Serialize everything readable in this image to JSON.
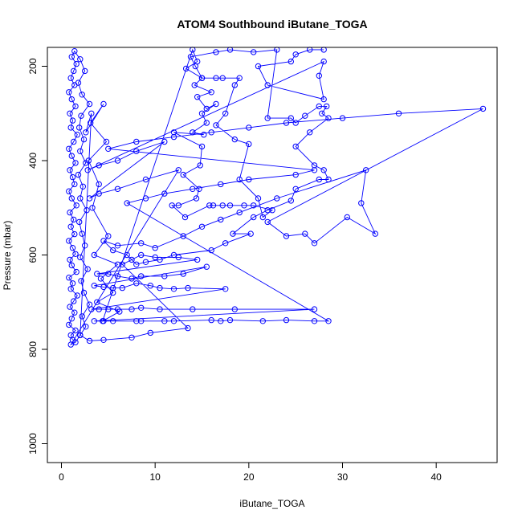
{
  "chart_data": {
    "type": "scatter",
    "title": "ATOM4 Southbound iButane_TOGA",
    "xlabel": "iButane_TOGA",
    "ylabel": "Pressure (mbar)",
    "xlim": [
      -1.5,
      46.5
    ],
    "ylim": [
      1040,
      160
    ],
    "y_reversed": true,
    "grid": false,
    "x_ticks": [
      0,
      10,
      20,
      30,
      40
    ],
    "y_ticks": [
      200,
      400,
      600,
      800,
      1000
    ],
    "series": [
      {
        "color": "#0000ff",
        "marker": "open-circle",
        "line": true,
        "points": [
          [
            1.2,
            780
          ],
          [
            1.0,
            770
          ],
          [
            1.5,
            760
          ],
          [
            0.8,
            748
          ],
          [
            1.1,
            735
          ],
          [
            1.4,
            722
          ],
          [
            0.9,
            710
          ],
          [
            1.3,
            698
          ],
          [
            1.7,
            686
          ],
          [
            1.0,
            672
          ],
          [
            1.2,
            660
          ],
          [
            0.8,
            648
          ],
          [
            1.6,
            636
          ],
          [
            1.1,
            622
          ],
          [
            0.9,
            610
          ],
          [
            1.5,
            598
          ],
          [
            1.2,
            585
          ],
          [
            0.8,
            570
          ],
          [
            1.4,
            556
          ],
          [
            1.0,
            540
          ],
          [
            1.3,
            525
          ],
          [
            0.9,
            510
          ],
          [
            1.6,
            495
          ],
          [
            1.1,
            480
          ],
          [
            0.8,
            465
          ],
          [
            1.4,
            450
          ],
          [
            1.2,
            435
          ],
          [
            0.9,
            420
          ],
          [
            1.5,
            405
          ],
          [
            1.1,
            390
          ],
          [
            0.8,
            375
          ],
          [
            1.3,
            360
          ],
          [
            1.7,
            345
          ],
          [
            1.0,
            330
          ],
          [
            1.2,
            315
          ],
          [
            0.9,
            300
          ],
          [
            1.5,
            285
          ],
          [
            1.1,
            270
          ],
          [
            0.8,
            255
          ],
          [
            1.4,
            240
          ],
          [
            1.0,
            225
          ],
          [
            1.3,
            210
          ],
          [
            1.6,
            195
          ],
          [
            1.1,
            180
          ],
          [
            1.4,
            168
          ],
          [
            2.0,
            185
          ],
          [
            2.5,
            210
          ],
          [
            1.8,
            235
          ],
          [
            2.2,
            260
          ],
          [
            3.0,
            280
          ],
          [
            2.1,
            305
          ],
          [
            1.9,
            330
          ],
          [
            2.4,
            355
          ],
          [
            2.0,
            380
          ],
          [
            2.6,
            405
          ],
          [
            1.8,
            430
          ],
          [
            2.3,
            455
          ],
          [
            2.0,
            480
          ],
          [
            2.7,
            505
          ],
          [
            1.9,
            530
          ],
          [
            2.2,
            555
          ],
          [
            2.5,
            580
          ],
          [
            2.0,
            605
          ],
          [
            2.8,
            630
          ],
          [
            2.1,
            655
          ],
          [
            2.4,
            680
          ],
          [
            3.0,
            705
          ],
          [
            2.2,
            730
          ],
          [
            2.6,
            752
          ],
          [
            2.0,
            770
          ],
          [
            3.2,
            300
          ],
          [
            2.6,
            340
          ],
          [
            4.5,
            280
          ],
          [
            3.1,
            320
          ],
          [
            4.8,
            360
          ],
          [
            2.9,
            400
          ],
          [
            4.0,
            450
          ],
          [
            3.3,
            500
          ],
          [
            5.0,
            560
          ],
          [
            3.5,
            600
          ],
          [
            6.0,
            620
          ],
          [
            4.2,
            650
          ],
          [
            5.5,
            680
          ],
          [
            3.8,
            700
          ],
          [
            6.2,
            720
          ],
          [
            4.4,
            740
          ],
          [
            14.0,
            165
          ],
          [
            14.5,
            190
          ],
          [
            13.3,
            205
          ],
          [
            15.0,
            225
          ],
          [
            14.2,
            240
          ],
          [
            16.0,
            255
          ],
          [
            14.5,
            265
          ],
          [
            15.5,
            290
          ],
          [
            16.5,
            280
          ],
          [
            15.0,
            300
          ],
          [
            15.5,
            320
          ],
          [
            14.0,
            340
          ],
          [
            15.2,
            345
          ],
          [
            12.0,
            340
          ],
          [
            15.0,
            370
          ],
          [
            14.8,
            410
          ],
          [
            13.0,
            430
          ],
          [
            14.7,
            460
          ],
          [
            14.4,
            480
          ],
          [
            12.5,
            495
          ],
          [
            11.8,
            495
          ],
          [
            13.2,
            520
          ],
          [
            15.8,
            495
          ],
          [
            16.2,
            495
          ],
          [
            17.2,
            495
          ],
          [
            18.0,
            495
          ],
          [
            19.5,
            495
          ],
          [
            20.5,
            495
          ],
          [
            22.5,
            505
          ],
          [
            21.5,
            520
          ],
          [
            21.0,
            480
          ],
          [
            19.0,
            440
          ],
          [
            20.0,
            365
          ],
          [
            18.5,
            355
          ],
          [
            16.5,
            325
          ],
          [
            17.5,
            300
          ],
          [
            18.5,
            240
          ],
          [
            19.0,
            225
          ],
          [
            17.2,
            225
          ],
          [
            16.5,
            225
          ],
          [
            15.0,
            225
          ],
          [
            14.3,
            200
          ],
          [
            13.8,
            180
          ],
          [
            16.5,
            170
          ],
          [
            18.0,
            165
          ],
          [
            20.5,
            170
          ],
          [
            23.0,
            165
          ],
          [
            22.0,
            310
          ],
          [
            24.5,
            310
          ],
          [
            25.0,
            320
          ],
          [
            26.0,
            305
          ],
          [
            27.5,
            285
          ],
          [
            28.3,
            285
          ],
          [
            27.8,
            300
          ],
          [
            28.5,
            310
          ],
          [
            26.5,
            340
          ],
          [
            25.0,
            370
          ],
          [
            27.0,
            410
          ],
          [
            28.0,
            420
          ],
          [
            28.5,
            440
          ],
          [
            27.5,
            440
          ],
          [
            25.0,
            460
          ],
          [
            24.5,
            485
          ],
          [
            22.0,
            505
          ],
          [
            20.5,
            520
          ],
          [
            18.3,
            555
          ],
          [
            20.2,
            555
          ],
          [
            17.5,
            575
          ],
          [
            16.0,
            590
          ],
          [
            12.0,
            600
          ],
          [
            10.5,
            610
          ],
          [
            9.0,
            615
          ],
          [
            8.0,
            620
          ],
          [
            7.0,
            600
          ],
          [
            5.5,
            590
          ],
          [
            4.5,
            570
          ],
          [
            6.0,
            580
          ],
          [
            8.5,
            575
          ],
          [
            10.0,
            585
          ],
          [
            13.0,
            560
          ],
          [
            15.0,
            540
          ],
          [
            17.0,
            525
          ],
          [
            19.0,
            510
          ],
          [
            23.0,
            480
          ],
          [
            32.5,
            420
          ],
          [
            32.0,
            490
          ],
          [
            33.5,
            555
          ],
          [
            30.5,
            520
          ],
          [
            27.0,
            575
          ],
          [
            26.0,
            555
          ],
          [
            24.0,
            560
          ],
          [
            22.0,
            530
          ],
          [
            45.0,
            290
          ],
          [
            36.0,
            300
          ],
          [
            30.0,
            310
          ],
          [
            24.0,
            320
          ],
          [
            20.0,
            330
          ],
          [
            16.0,
            340
          ],
          [
            12.0,
            350
          ],
          [
            8.0,
            360
          ],
          [
            5.0,
            375
          ],
          [
            27.0,
            420
          ],
          [
            25.0,
            430
          ],
          [
            20.0,
            440
          ],
          [
            17.0,
            450
          ],
          [
            14.0,
            460
          ],
          [
            11.0,
            470
          ],
          [
            9.0,
            480
          ],
          [
            7.0,
            490
          ],
          [
            28.5,
            740
          ],
          [
            27.0,
            740
          ],
          [
            24.0,
            738
          ],
          [
            21.5,
            740
          ],
          [
            18.0,
            738
          ],
          [
            17.0,
            740
          ],
          [
            16.0,
            738
          ],
          [
            12.0,
            740
          ],
          [
            11.0,
            740
          ],
          [
            8.5,
            740
          ],
          [
            8.0,
            740
          ],
          [
            5.5,
            740
          ],
          [
            4.5,
            740
          ],
          [
            3.5,
            740
          ],
          [
            27.0,
            715
          ],
          [
            18.5,
            715
          ],
          [
            14.0,
            715
          ],
          [
            10.5,
            715
          ],
          [
            8.5,
            712
          ],
          [
            7.5,
            715
          ],
          [
            6.0,
            715
          ],
          [
            5.0,
            715
          ],
          [
            4.0,
            715
          ],
          [
            3.2,
            715
          ],
          [
            17.5,
            672
          ],
          [
            13.5,
            670
          ],
          [
            12.0,
            672
          ],
          [
            10.5,
            670
          ],
          [
            9.5,
            665
          ],
          [
            8.0,
            660
          ],
          [
            6.5,
            670
          ],
          [
            5.5,
            670
          ],
          [
            4.5,
            668
          ],
          [
            3.5,
            665
          ],
          [
            15.5,
            625
          ],
          [
            13.0,
            640
          ],
          [
            11.0,
            645
          ],
          [
            8.5,
            645
          ],
          [
            7.5,
            650
          ],
          [
            6.0,
            645
          ],
          [
            5.0,
            640
          ],
          [
            3.8,
            640
          ],
          [
            14.5,
            610
          ],
          [
            12.5,
            605
          ],
          [
            10.0,
            605
          ],
          [
            8.5,
            600
          ],
          [
            7.5,
            610
          ],
          [
            6.5,
            620
          ],
          [
            13.5,
            755
          ],
          [
            9.5,
            765
          ],
          [
            7.5,
            775
          ],
          [
            4.5,
            780
          ],
          [
            3.0,
            782
          ],
          [
            2.0,
            770
          ],
          [
            1.5,
            785
          ],
          [
            1.0,
            790
          ],
          [
            12.5,
            420
          ],
          [
            9.0,
            440
          ],
          [
            6.0,
            460
          ],
          [
            4.0,
            470
          ],
          [
            3.0,
            480
          ],
          [
            11.0,
            360
          ],
          [
            8.0,
            380
          ],
          [
            6.0,
            400
          ],
          [
            4.0,
            410
          ],
          [
            2.8,
            420
          ],
          [
            28.0,
            190
          ],
          [
            27.5,
            220
          ],
          [
            28.0,
            270
          ],
          [
            22.0,
            240
          ],
          [
            21.0,
            200
          ],
          [
            24.5,
            190
          ],
          [
            25.0,
            175
          ],
          [
            26.5,
            165
          ],
          [
            28.0,
            165
          ]
        ]
      }
    ]
  }
}
